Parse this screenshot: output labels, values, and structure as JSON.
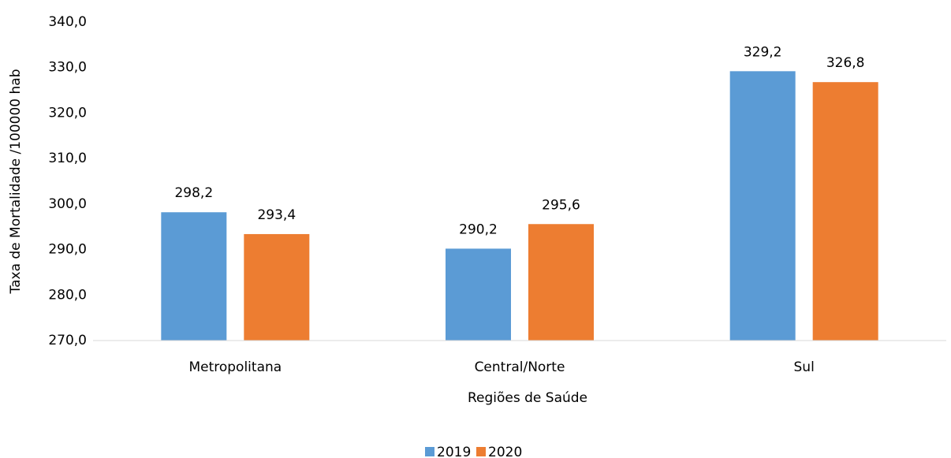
{
  "chart_data": {
    "type": "bar",
    "x_label": "Regiões de Saúde",
    "y_label": "Taxa de Mortalidade /100000 hab",
    "categories": [
      "Metropolitana",
      "Central/Norte",
      "Sul"
    ],
    "series": [
      {
        "name": "2019",
        "color": "#5b9bd5",
        "values": [
          298.2,
          290.2,
          329.2
        ],
        "value_labels": [
          "298,2",
          "290,2",
          "329,2"
        ]
      },
      {
        "name": "2020",
        "color": "#ed7d31",
        "values": [
          293.4,
          295.6,
          326.8
        ],
        "value_labels": [
          "293,4",
          "295,6",
          "326,8"
        ]
      }
    ],
    "ylim": [
      270,
      340
    ],
    "yticks": [
      {
        "value": 270,
        "label": "270,0"
      },
      {
        "value": 280,
        "label": "280,0"
      },
      {
        "value": 290,
        "label": "290,0"
      },
      {
        "value": 300,
        "label": "300,0"
      },
      {
        "value": 310,
        "label": "310,0"
      },
      {
        "value": 320,
        "label": "320,0"
      },
      {
        "value": 330,
        "label": "330,0"
      },
      {
        "value": 340,
        "label": "340,0"
      }
    ],
    "grid": false,
    "legend": "bottom"
  }
}
